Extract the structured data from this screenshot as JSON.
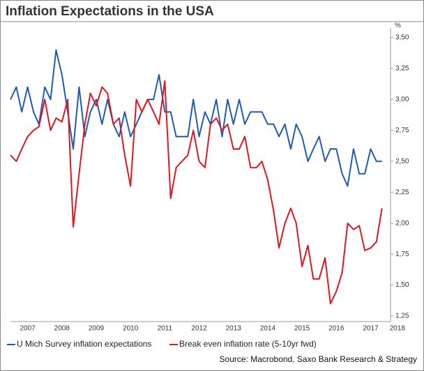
{
  "chart_data": {
    "type": "line",
    "title": "Inflation Expectations in the USA",
    "y_unit": "%",
    "source": "Source: Macrobond, Saxo Bank Research & Strategy",
    "x": [
      2007,
      2007.17,
      2007.33,
      2007.5,
      2007.67,
      2007.83,
      2008,
      2008.17,
      2008.33,
      2008.5,
      2008.67,
      2008.83,
      2009,
      2009.17,
      2009.33,
      2009.5,
      2009.67,
      2009.83,
      2010,
      2010.17,
      2010.33,
      2010.5,
      2010.67,
      2010.83,
      2011,
      2011.17,
      2011.33,
      2011.5,
      2011.67,
      2011.83,
      2012,
      2012.17,
      2012.33,
      2012.5,
      2012.67,
      2012.83,
      2013,
      2013.17,
      2013.33,
      2013.5,
      2013.67,
      2013.83,
      2014,
      2014.17,
      2014.33,
      2014.5,
      2014.67,
      2014.83,
      2015,
      2015.17,
      2015.33,
      2015.5,
      2015.67,
      2015.83,
      2016,
      2016.17,
      2016.33,
      2016.5,
      2016.67,
      2016.83,
      2017,
      2017.17,
      2017.33,
      2017.5,
      2017.67,
      2017.83
    ],
    "series": [
      {
        "name": "U Mich Survey inflation expectations",
        "color": "#1f5bb5",
        "values": [
          3.0,
          3.1,
          2.9,
          3.1,
          2.9,
          2.8,
          3.1,
          3.0,
          3.4,
          3.2,
          2.9,
          2.6,
          3.1,
          2.7,
          2.9,
          3.0,
          2.8,
          3.0,
          2.8,
          2.7,
          2.9,
          2.7,
          2.8,
          2.9,
          3.0,
          3.0,
          3.2,
          2.9,
          2.9,
          2.7,
          2.7,
          2.7,
          3.0,
          2.7,
          2.9,
          2.8,
          3.0,
          2.7,
          3.0,
          2.8,
          3.0,
          2.8,
          2.9,
          2.9,
          2.9,
          2.8,
          2.8,
          2.7,
          2.8,
          2.6,
          2.8,
          2.7,
          2.5,
          2.6,
          2.7,
          2.5,
          2.6,
          2.6,
          2.4,
          2.3,
          2.6,
          2.4,
          2.4,
          2.6,
          2.5,
          2.5
        ]
      },
      {
        "name": "Break even inflation rate (5-10yr fwd)",
        "color": "#e0161e",
        "values": [
          2.55,
          2.5,
          2.6,
          2.7,
          2.75,
          2.78,
          3.0,
          2.75,
          2.85,
          2.82,
          3.0,
          1.97,
          2.4,
          2.8,
          3.05,
          2.95,
          3.1,
          3.05,
          2.8,
          2.85,
          2.55,
          2.3,
          3.0,
          2.9,
          3.0,
          2.9,
          2.8,
          3.15,
          2.2,
          2.45,
          2.5,
          2.55,
          2.75,
          2.5,
          2.45,
          2.8,
          2.85,
          2.75,
          2.8,
          2.6,
          2.6,
          2.7,
          2.45,
          2.45,
          2.5,
          2.35,
          2.1,
          1.8,
          2.0,
          2.12,
          2.0,
          1.65,
          1.82,
          1.55,
          1.55,
          1.72,
          1.35,
          1.45,
          1.6,
          2.0,
          1.95,
          1.98,
          1.78,
          1.8,
          1.85,
          2.12
        ]
      }
    ],
    "xlim": [
      2007,
      2018.08
    ],
    "xticks": [
      {
        "value": 2007.5,
        "label": "2007"
      },
      {
        "value": 2008.5,
        "label": "2008"
      },
      {
        "value": 2009.5,
        "label": "2009"
      },
      {
        "value": 2010.5,
        "label": "2010"
      },
      {
        "value": 2011.5,
        "label": "2011"
      },
      {
        "value": 2012.5,
        "label": "2012"
      },
      {
        "value": 2013.5,
        "label": "2013"
      },
      {
        "value": 2014.5,
        "label": "2014"
      },
      {
        "value": 2015.5,
        "label": "2015"
      },
      {
        "value": 2016.5,
        "label": "2016"
      },
      {
        "value": 2017.5,
        "label": "2017"
      },
      {
        "value": 2018.28,
        "label": "2018"
      }
    ],
    "ylim": [
      1.25,
      3.5
    ],
    "yticks": [
      {
        "value": 1.25,
        "label": "1,25"
      },
      {
        "value": 1.5,
        "label": "1,50"
      },
      {
        "value": 1.75,
        "label": "1,75"
      },
      {
        "value": 2.0,
        "label": "2,00"
      },
      {
        "value": 2.25,
        "label": "2,25"
      },
      {
        "value": 2.5,
        "label": "2,50"
      },
      {
        "value": 2.75,
        "label": "2,75"
      },
      {
        "value": 3.0,
        "label": "3,00"
      },
      {
        "value": 3.25,
        "label": "3,25"
      },
      {
        "value": 3.5,
        "label": "3,50"
      }
    ],
    "legend": "bottom"
  }
}
